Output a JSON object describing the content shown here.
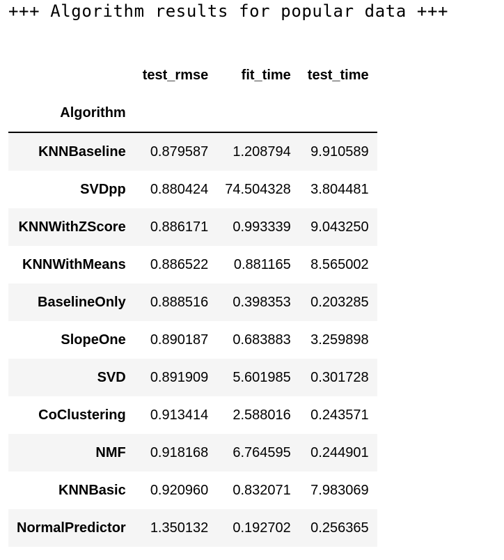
{
  "heading": "+++ Algorithm results for popular data +++",
  "table": {
    "index_name": "Algorithm",
    "columns": [
      "test_rmse",
      "fit_time",
      "test_time"
    ],
    "rows": [
      {
        "algorithm": "KNNBaseline",
        "test_rmse": "0.879587",
        "fit_time": "1.208794",
        "test_time": "9.910589"
      },
      {
        "algorithm": "SVDpp",
        "test_rmse": "0.880424",
        "fit_time": "74.504328",
        "test_time": "3.804481"
      },
      {
        "algorithm": "KNNWithZScore",
        "test_rmse": "0.886171",
        "fit_time": "0.993339",
        "test_time": "9.043250"
      },
      {
        "algorithm": "KNNWithMeans",
        "test_rmse": "0.886522",
        "fit_time": "0.881165",
        "test_time": "8.565002"
      },
      {
        "algorithm": "BaselineOnly",
        "test_rmse": "0.888516",
        "fit_time": "0.398353",
        "test_time": "0.203285"
      },
      {
        "algorithm": "SlopeOne",
        "test_rmse": "0.890187",
        "fit_time": "0.683883",
        "test_time": "3.259898"
      },
      {
        "algorithm": "SVD",
        "test_rmse": "0.891909",
        "fit_time": "5.601985",
        "test_time": "0.301728"
      },
      {
        "algorithm": "CoClustering",
        "test_rmse": "0.913414",
        "fit_time": "2.588016",
        "test_time": "0.243571"
      },
      {
        "algorithm": "NMF",
        "test_rmse": "0.918168",
        "fit_time": "6.764595",
        "test_time": "0.244901"
      },
      {
        "algorithm": "KNNBasic",
        "test_rmse": "0.920960",
        "fit_time": "0.832071",
        "test_time": "7.983069"
      },
      {
        "algorithm": "NormalPredictor",
        "test_rmse": "1.350132",
        "fit_time": "0.192702",
        "test_time": "0.256365"
      }
    ]
  }
}
